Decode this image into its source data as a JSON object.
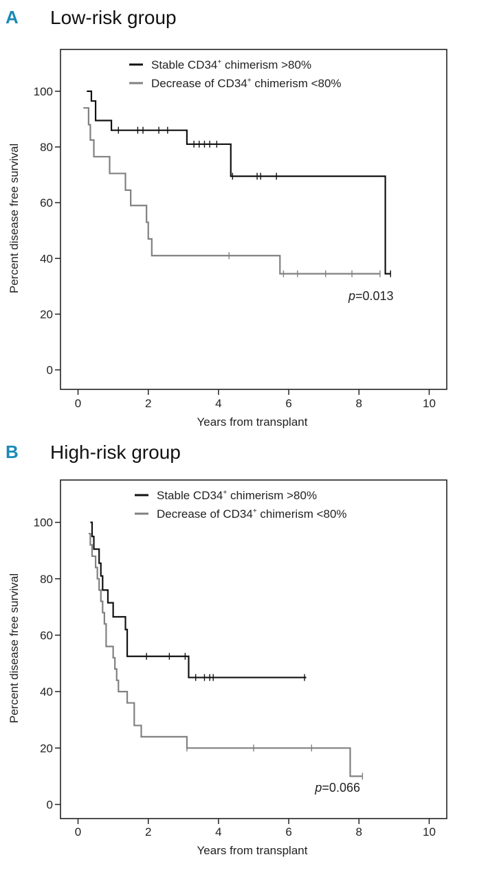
{
  "colors": {
    "accent": "#1a8ab5",
    "stable": "#111111",
    "decrease": "#808080"
  },
  "chart_data": [
    {
      "type": "line",
      "panel_letter": "A",
      "title": "Low-risk group",
      "xlabel": "Years from transplant",
      "ylabel": "Percent disease free survival",
      "xlim": [
        -0.5,
        10.5
      ],
      "ylim": [
        -7,
        115
      ],
      "xticks": [
        0,
        2,
        4,
        6,
        8,
        10
      ],
      "yticks": [
        0,
        20,
        40,
        60,
        80,
        100
      ],
      "legend_position": "top",
      "annotation": {
        "italic": "p",
        "text": "=0.013",
        "x": 7.7,
        "y": 25
      },
      "series": [
        {
          "name_pre": "Stable CD34",
          "name_sup": "+",
          "name_post": " chimerism >80%",
          "color": "#111111",
          "steps": [
            [
              0.25,
              100
            ],
            [
              0.38,
              96.5
            ],
            [
              0.5,
              89.5
            ],
            [
              0.95,
              86
            ],
            [
              3.1,
              81
            ],
            [
              4.35,
              69.5
            ],
            [
              8.75,
              34.5
            ],
            [
              8.9,
              34.5
            ]
          ],
          "censor": [
            [
              1.15,
              86
            ],
            [
              1.7,
              86
            ],
            [
              1.85,
              86
            ],
            [
              2.3,
              86
            ],
            [
              2.55,
              86
            ],
            [
              3.3,
              81
            ],
            [
              3.45,
              81
            ],
            [
              3.6,
              81
            ],
            [
              3.75,
              81
            ],
            [
              3.95,
              81
            ],
            [
              4.4,
              69.5
            ],
            [
              5.1,
              69.5
            ],
            [
              5.2,
              69.5
            ],
            [
              5.65,
              69.5
            ],
            [
              8.9,
              34.5
            ]
          ]
        },
        {
          "name_pre": "Decrease of CD34",
          "name_sup": "+",
          "name_post": " chimerism <80%",
          "color": "#808080",
          "steps": [
            [
              0.15,
              94
            ],
            [
              0.3,
              88
            ],
            [
              0.35,
              82.5
            ],
            [
              0.45,
              76.5
            ],
            [
              0.9,
              70.5
            ],
            [
              1.35,
              64.5
            ],
            [
              1.5,
              59
            ],
            [
              1.95,
              53
            ],
            [
              2.0,
              47
            ],
            [
              2.1,
              41
            ],
            [
              5.75,
              34.5
            ],
            [
              8.6,
              34.5
            ]
          ],
          "censor": [
            [
              4.3,
              41
            ],
            [
              5.85,
              34.5
            ],
            [
              6.25,
              34.5
            ],
            [
              7.05,
              34.5
            ],
            [
              7.8,
              34.5
            ],
            [
              8.6,
              34.5
            ]
          ]
        }
      ]
    },
    {
      "type": "line",
      "panel_letter": "B",
      "title": "High-risk group",
      "xlabel": "Years from transplant",
      "ylabel": "Percent disease free survival",
      "xlim": [
        -0.5,
        10.5
      ],
      "ylim": [
        -5,
        115
      ],
      "xticks": [
        0,
        2,
        4,
        6,
        8,
        10
      ],
      "yticks": [
        0,
        20,
        40,
        60,
        80,
        100
      ],
      "legend_position": "top",
      "annotation": {
        "italic": "p",
        "text": "=0.066",
        "x": 6.75,
        "y": 4.5
      },
      "series": [
        {
          "name_pre": "Stable CD34",
          "name_sup": "+",
          "name_post": " chimerism >80%",
          "color": "#111111",
          "steps": [
            [
              0.35,
              100
            ],
            [
              0.4,
              95
            ],
            [
              0.45,
              90.5
            ],
            [
              0.6,
              85.5
            ],
            [
              0.65,
              81
            ],
            [
              0.7,
              76
            ],
            [
              0.85,
              71.5
            ],
            [
              1.0,
              66.5
            ],
            [
              1.35,
              62
            ],
            [
              1.4,
              52.5
            ],
            [
              3.15,
              45
            ],
            [
              6.5,
              45
            ]
          ],
          "censor": [
            [
              1.95,
              52.5
            ],
            [
              2.6,
              52.5
            ],
            [
              3.05,
              52.5
            ],
            [
              3.35,
              45
            ],
            [
              3.6,
              45
            ],
            [
              3.75,
              45
            ],
            [
              3.85,
              45
            ],
            [
              6.45,
              45
            ]
          ]
        },
        {
          "name_pre": "Decrease of CD34",
          "name_sup": "+",
          "name_post": " chimerism <80%",
          "color": "#808080",
          "steps": [
            [
              0.3,
              96
            ],
            [
              0.35,
              92
            ],
            [
              0.4,
              88
            ],
            [
              0.5,
              84
            ],
            [
              0.55,
              80
            ],
            [
              0.6,
              76
            ],
            [
              0.65,
              72
            ],
            [
              0.7,
              68
            ],
            [
              0.75,
              64
            ],
            [
              0.8,
              60
            ],
            [
              0.8,
              56
            ],
            [
              1.0,
              52
            ],
            [
              1.05,
              48
            ],
            [
              1.1,
              44
            ],
            [
              1.15,
              40
            ],
            [
              1.4,
              36
            ],
            [
              1.6,
              32
            ],
            [
              1.6,
              28
            ],
            [
              1.8,
              24
            ],
            [
              3.1,
              20
            ],
            [
              7.75,
              10
            ],
            [
              8.1,
              10
            ]
          ],
          "censor": [
            [
              3.1,
              20
            ],
            [
              5.0,
              20
            ],
            [
              6.65,
              20
            ],
            [
              8.1,
              10
            ]
          ]
        }
      ]
    }
  ]
}
